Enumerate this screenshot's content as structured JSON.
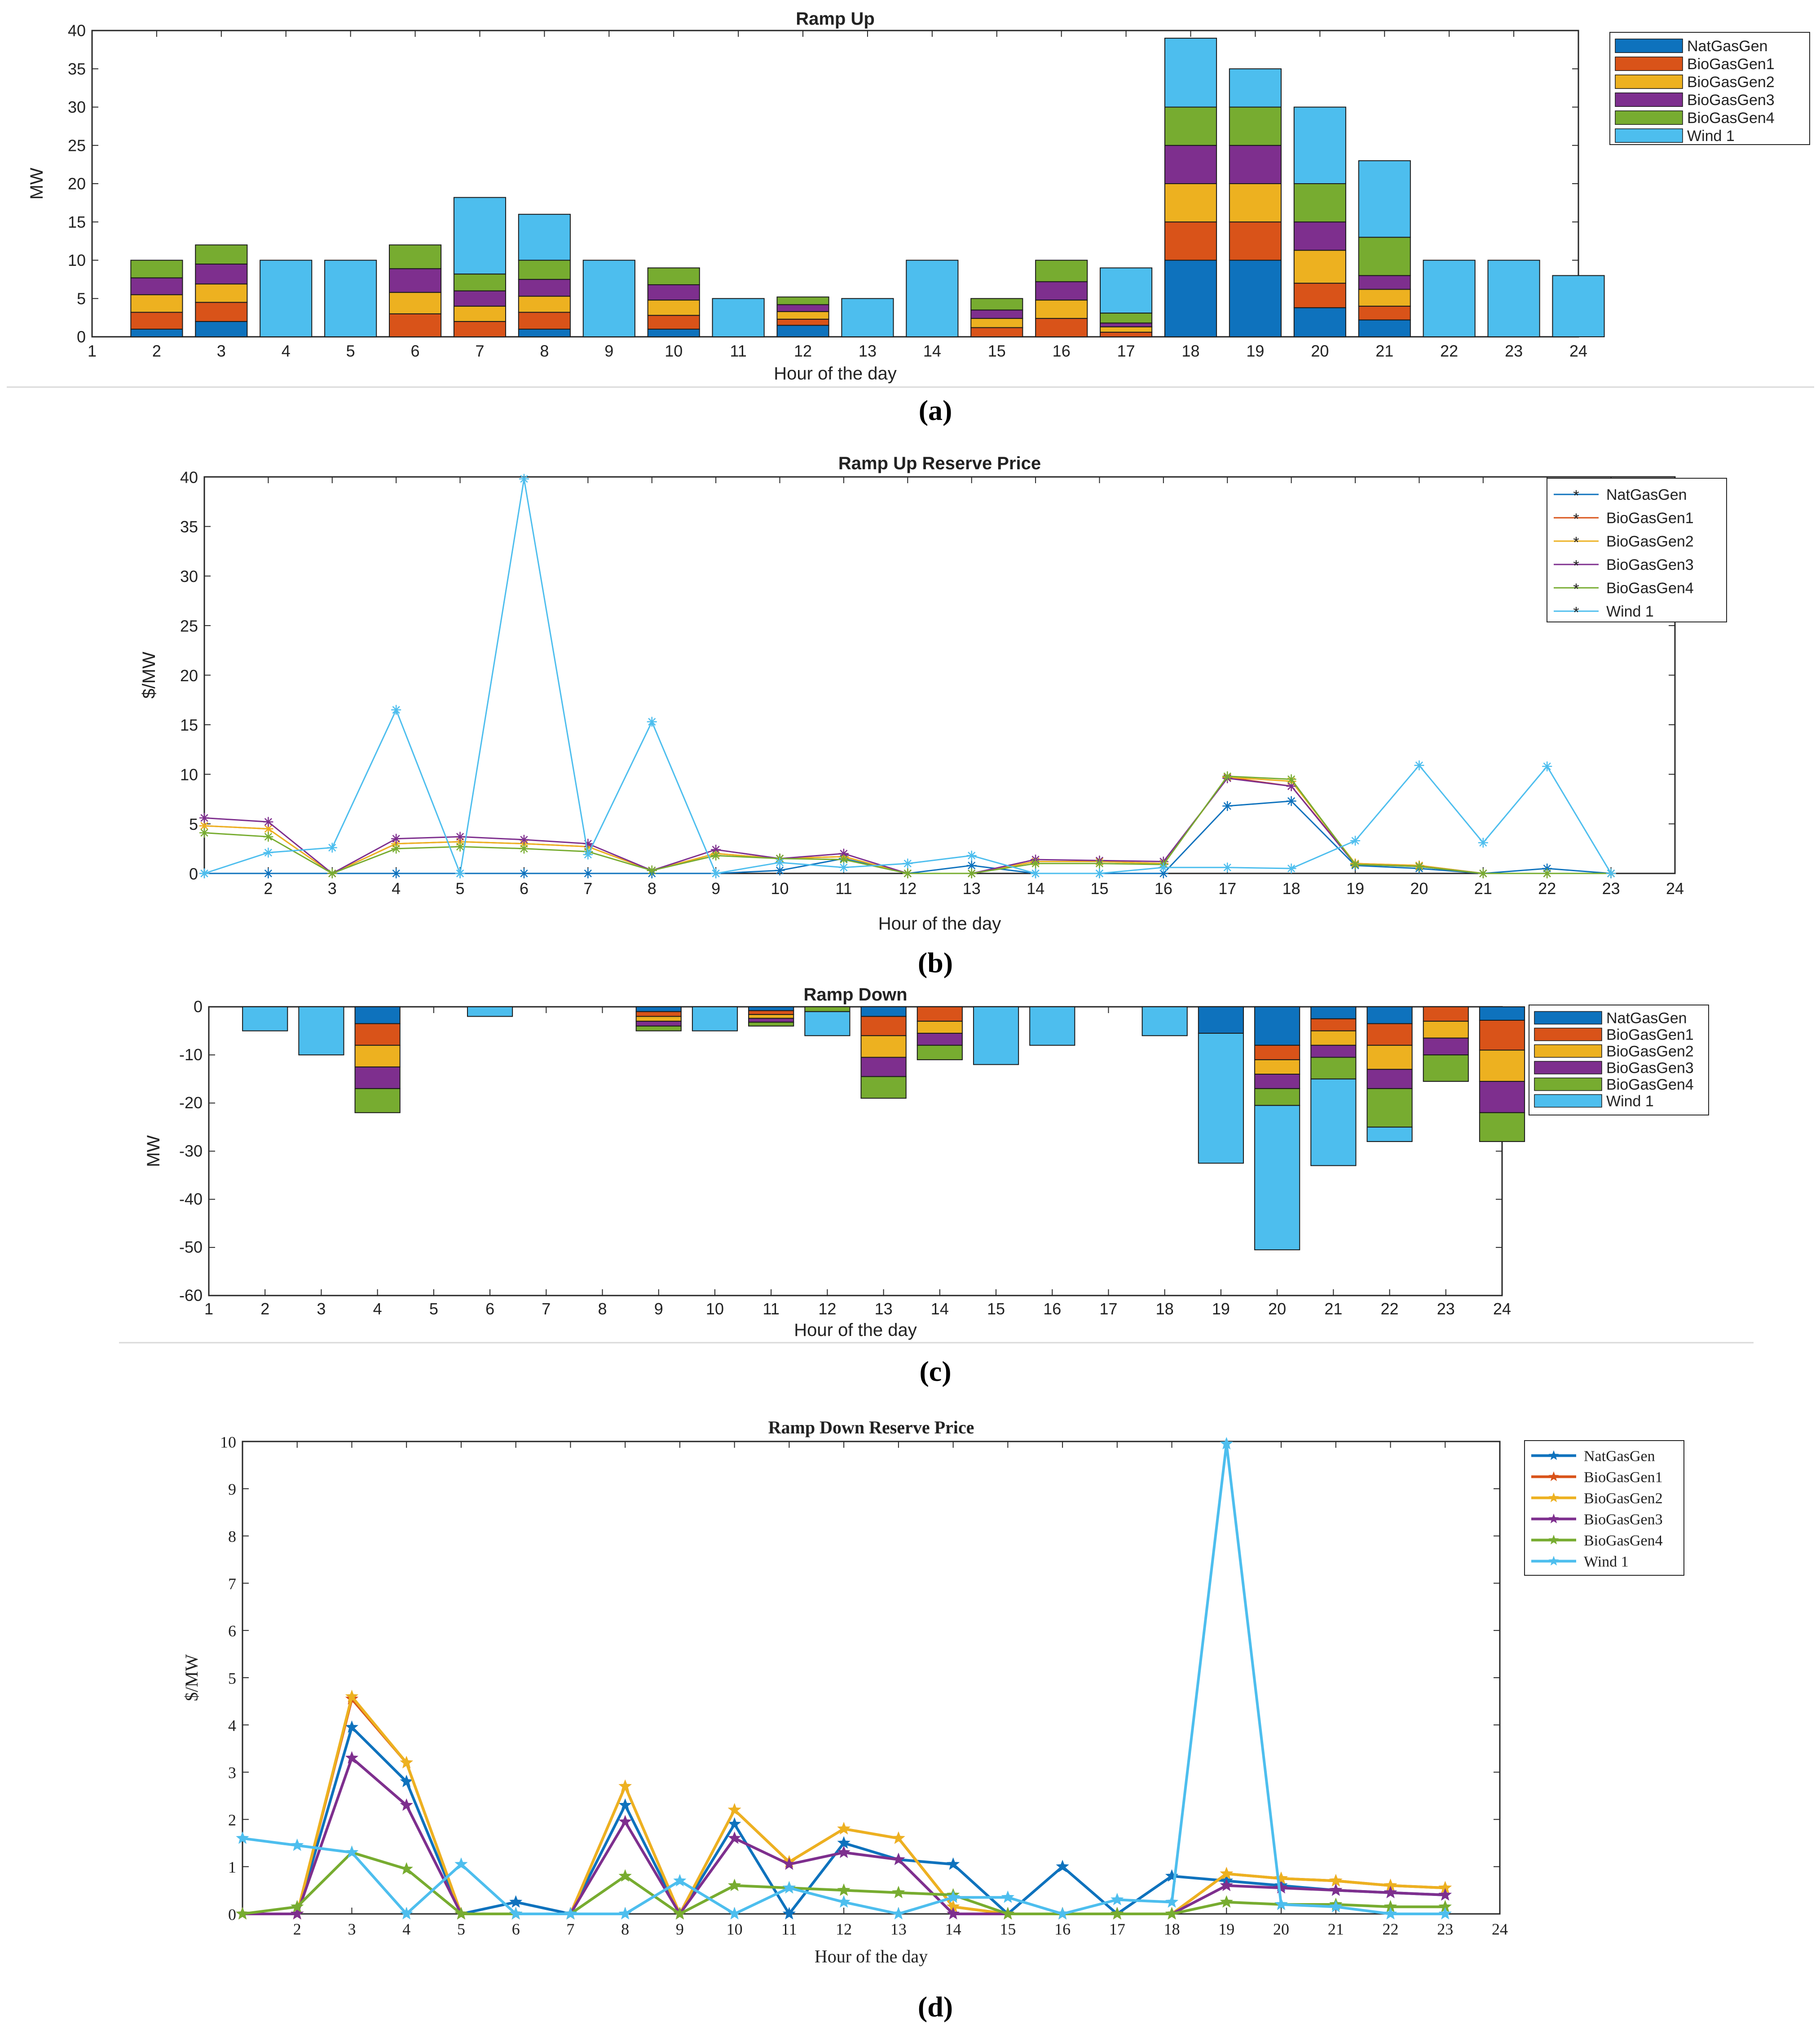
{
  "colors": {
    "NatGasGen": "#0e72bd",
    "BioGasGen1": "#d95319",
    "BioGasGen2": "#edb120",
    "BioGasGen3": "#7e2f8e",
    "BioGasGen4": "#77ac30",
    "Wind 1": "#4dbeee"
  },
  "chart_data": [
    {
      "id": "a",
      "type": "bar",
      "stacked": true,
      "title": "Ramp Up",
      "xlabel": "Hour of the day",
      "ylabel": "MW",
      "subplot_label": "(a)",
      "xlim": [
        1,
        24
      ],
      "ylim": [
        0,
        40
      ],
      "xticks": [
        1,
        2,
        3,
        4,
        5,
        6,
        7,
        8,
        9,
        10,
        11,
        12,
        13,
        14,
        15,
        16,
        17,
        18,
        19,
        20,
        21,
        22,
        23,
        24
      ],
      "yticks": [
        0,
        5,
        10,
        15,
        20,
        25,
        30,
        35,
        40
      ],
      "legend_position": "outside-right-top",
      "x": [
        2,
        3,
        4,
        5,
        6,
        7,
        8,
        9,
        10,
        11,
        12,
        13,
        14,
        15,
        16,
        17,
        18,
        19,
        20,
        21,
        22,
        23,
        24
      ],
      "series": [
        {
          "name": "NatGasGen",
          "values": [
            1,
            2,
            0,
            0,
            0,
            0,
            1,
            0,
            1,
            0,
            1.5,
            0,
            0,
            0,
            0,
            0,
            10,
            10,
            3.8,
            2.2,
            0,
            0,
            0
          ]
        },
        {
          "name": "BioGasGen1",
          "values": [
            2.2,
            2.5,
            0,
            0,
            3,
            2,
            2.2,
            0,
            1.8,
            0,
            0.8,
            0,
            0,
            1.2,
            2.4,
            0.6,
            5,
            5,
            3.2,
            1.8,
            0,
            0,
            0
          ]
        },
        {
          "name": "BioGasGen2",
          "values": [
            2.3,
            2.4,
            0,
            0,
            2.8,
            2,
            2.1,
            0,
            2,
            0,
            1,
            0,
            0,
            1.2,
            2.4,
            0.7,
            5,
            5,
            4.3,
            2.2,
            0,
            0,
            0
          ]
        },
        {
          "name": "BioGasGen3",
          "values": [
            2.2,
            2.6,
            0,
            0,
            3.1,
            2,
            2.2,
            0,
            2,
            0,
            0.9,
            0,
            0,
            1.1,
            2.4,
            0.5,
            5,
            5,
            3.7,
            1.8,
            0,
            0,
            0
          ]
        },
        {
          "name": "BioGasGen4",
          "values": [
            2.3,
            2.5,
            0,
            0,
            3.1,
            2.2,
            2.5,
            0,
            2.2,
            0,
            1,
            0,
            0,
            1.5,
            2.8,
            1.3,
            5,
            5,
            5,
            5,
            0,
            0,
            0
          ]
        },
        {
          "name": "Wind 1",
          "values": [
            0,
            0,
            10,
            10,
            0,
            10,
            6,
            10,
            0,
            5,
            0,
            5,
            10,
            0,
            0,
            5.9,
            9,
            5,
            10,
            10,
            10,
            10,
            8
          ]
        }
      ]
    },
    {
      "id": "b",
      "type": "line",
      "title": "Ramp Up Reserve Price",
      "xlabel": "Hour of the day",
      "ylabel": "$/MW",
      "subplot_label": "(b)",
      "xlim": [
        1,
        24
      ],
      "ylim": [
        0,
        40
      ],
      "xticks": [
        2,
        3,
        4,
        5,
        6,
        7,
        8,
        9,
        10,
        11,
        12,
        13,
        14,
        15,
        16,
        17,
        18,
        19,
        20,
        21,
        22,
        23,
        24
      ],
      "yticks": [
        0,
        5,
        10,
        15,
        20,
        25,
        30,
        35,
        40
      ],
      "legend_position": "outside-right-top",
      "marker": "asterisk",
      "x": [
        1,
        2,
        3,
        4,
        5,
        6,
        7,
        8,
        9,
        10,
        11,
        12,
        13,
        14,
        15,
        16,
        17,
        18,
        19,
        20,
        21,
        22,
        23
      ],
      "series": [
        {
          "name": "NatGasGen",
          "values": [
            0,
            0,
            0,
            0,
            0,
            0,
            0,
            0,
            0,
            0.3,
            1.5,
            0,
            0.8,
            0,
            0,
            0,
            6.8,
            7.3,
            0.8,
            0.5,
            0,
            0.5,
            0
          ]
        },
        {
          "name": "BioGasGen1",
          "values": [
            4.8,
            4.5,
            0,
            3,
            3.2,
            3,
            2.7,
            0.3,
            2,
            1.5,
            1.7,
            0,
            0,
            1.2,
            1.2,
            1,
            9.7,
            8.8,
            1,
            0.8,
            0,
            0,
            0
          ]
        },
        {
          "name": "BioGasGen2",
          "values": [
            4.8,
            4.5,
            0,
            3,
            3.2,
            3,
            2.7,
            0.3,
            2,
            1.5,
            1.7,
            0,
            0,
            1.2,
            1.2,
            1,
            9.7,
            9.3,
            1,
            0.8,
            0,
            0,
            0
          ]
        },
        {
          "name": "BioGasGen3",
          "values": [
            5.6,
            5.2,
            0,
            3.5,
            3.7,
            3.4,
            3,
            0.3,
            2.4,
            1.5,
            2,
            0,
            0,
            1.4,
            1.3,
            1.2,
            9.6,
            8.8,
            0.9,
            0.7,
            0,
            0,
            0
          ]
        },
        {
          "name": "BioGasGen4",
          "values": [
            4.1,
            3.7,
            0,
            2.5,
            2.7,
            2.5,
            2.2,
            0.3,
            1.8,
            1.5,
            1.4,
            0,
            0,
            1,
            1,
            0.9,
            9.8,
            9.5,
            0.9,
            0.7,
            0,
            0,
            0
          ]
        },
        {
          "name": "Wind 1",
          "values": [
            0,
            2.1,
            2.6,
            16.5,
            0,
            39.8,
            1.9,
            15.3,
            0,
            1.1,
            0.6,
            1,
            1.8,
            0,
            0,
            0.6,
            0.6,
            0.5,
            3.3,
            10.9,
            3.1,
            10.8,
            0
          ]
        }
      ]
    },
    {
      "id": "c",
      "type": "bar",
      "stacked": true,
      "title": "Ramp Down",
      "xlabel": "Hour of the day",
      "ylabel": "MW",
      "subplot_label": "(c)",
      "xlim": [
        1,
        24
      ],
      "ylim": [
        -60,
        0
      ],
      "xticks": [
        1,
        2,
        3,
        4,
        5,
        6,
        7,
        8,
        9,
        10,
        11,
        12,
        13,
        14,
        15,
        16,
        17,
        18,
        19,
        20,
        21,
        22,
        23,
        24
      ],
      "yticks": [
        -60,
        -50,
        -40,
        -30,
        -20,
        -10,
        0
      ],
      "legend_position": "outside-right-top",
      "x": [
        2,
        3,
        4,
        5,
        6,
        7,
        8,
        9,
        10,
        11,
        12,
        13,
        14,
        15,
        16,
        17,
        18,
        19,
        20,
        21,
        22,
        23,
        24
      ],
      "series": [
        {
          "name": "NatGasGen",
          "values": [
            0,
            0,
            -3.5,
            0,
            0,
            0,
            0,
            -1,
            0,
            -0.8,
            0,
            -2,
            0,
            0,
            0,
            0,
            0,
            -5.5,
            -8,
            -2.5,
            -3.5,
            0,
            -2.8
          ]
        },
        {
          "name": "BioGasGen1",
          "values": [
            0,
            0,
            -4.5,
            0,
            0,
            0,
            0,
            -1,
            0,
            -0.8,
            0,
            -4,
            -3,
            0,
            0,
            0,
            0,
            0,
            -3,
            -2.5,
            -4.5,
            -3,
            -6.2
          ]
        },
        {
          "name": "BioGasGen2",
          "values": [
            0,
            0,
            -4.5,
            0,
            0,
            0,
            0,
            -1,
            0,
            -0.8,
            0,
            -4.5,
            -2.5,
            0,
            0,
            0,
            0,
            0,
            -3,
            -3,
            -5,
            -3.5,
            -6.5
          ]
        },
        {
          "name": "BioGasGen3",
          "values": [
            0,
            0,
            -4.5,
            0,
            0,
            0,
            0,
            -1,
            0,
            -0.8,
            0,
            -4,
            -2.5,
            0,
            0,
            0,
            0,
            0,
            -3,
            -2.5,
            -4,
            -3.5,
            -6.5
          ]
        },
        {
          "name": "BioGasGen4",
          "values": [
            0,
            0,
            -5,
            0,
            0,
            0,
            0,
            -1,
            0,
            -0.8,
            -1,
            -4.5,
            -3,
            0,
            0,
            0,
            0,
            0,
            -3.5,
            -4.5,
            -8,
            -5.5,
            -6
          ]
        },
        {
          "name": "Wind 1",
          "values": [
            -5,
            -10,
            0,
            0,
            -2,
            0,
            0,
            0,
            -5,
            0,
            -5,
            0,
            0,
            -12,
            -8,
            0,
            -6,
            -27,
            -30,
            -18,
            -3,
            0,
            0
          ]
        }
      ]
    },
    {
      "id": "d",
      "type": "line",
      "title": "Ramp Down Reserve Price",
      "xlabel": "Hour of the day",
      "ylabel": "$/MW",
      "subplot_label": "(d)",
      "xlim": [
        1,
        24
      ],
      "ylim": [
        0,
        10
      ],
      "xticks": [
        2,
        3,
        4,
        5,
        6,
        7,
        8,
        9,
        10,
        11,
        12,
        13,
        14,
        15,
        16,
        17,
        18,
        19,
        20,
        21,
        22,
        23,
        24
      ],
      "yticks": [
        0,
        1,
        2,
        3,
        4,
        5,
        6,
        7,
        8,
        9,
        10
      ],
      "legend_position": "outside-right-top",
      "marker": "filled-star",
      "x": [
        1,
        2,
        3,
        4,
        5,
        6,
        7,
        8,
        9,
        10,
        11,
        12,
        13,
        14,
        15,
        16,
        17,
        18,
        19,
        20,
        21,
        22,
        23
      ],
      "series": [
        {
          "name": "NatGasGen",
          "values": [
            0,
            0,
            3.95,
            2.8,
            0,
            0.25,
            0,
            2.3,
            0,
            1.9,
            0,
            1.5,
            1.15,
            1.05,
            0,
            1,
            0,
            0.8,
            0.7,
            0.6,
            0.5,
            0.45,
            0.4
          ]
        },
        {
          "name": "BioGasGen1",
          "values": [
            0,
            0,
            4.55,
            3.2,
            0,
            0,
            0,
            2.7,
            0,
            2.2,
            1.1,
            1.8,
            1.6,
            0.15,
            0,
            0,
            0,
            0,
            0.85,
            0.75,
            0.7,
            0.6,
            0.55
          ]
        },
        {
          "name": "BioGasGen2",
          "values": [
            0,
            0,
            4.6,
            3.2,
            0,
            0,
            0,
            2.7,
            0,
            2.2,
            1.1,
            1.8,
            1.6,
            0.15,
            0,
            0,
            0,
            0,
            0.85,
            0.75,
            0.7,
            0.6,
            0.55
          ]
        },
        {
          "name": "BioGasGen3",
          "values": [
            0,
            0,
            3.3,
            2.3,
            0,
            0,
            0,
            1.95,
            0,
            1.6,
            1.05,
            1.3,
            1.15,
            0,
            0,
            0,
            0,
            0,
            0.6,
            0.55,
            0.5,
            0.45,
            0.4
          ]
        },
        {
          "name": "BioGasGen4",
          "values": [
            0,
            0.15,
            1.3,
            0.95,
            0,
            0,
            0,
            0.8,
            0,
            0.6,
            0.55,
            0.5,
            0.45,
            0.4,
            0,
            0,
            0,
            0,
            0.25,
            0.2,
            0.2,
            0.15,
            0.15
          ]
        },
        {
          "name": "Wind 1",
          "values": [
            1.6,
            1.45,
            1.3,
            0,
            1.05,
            0,
            0,
            0,
            0.7,
            0,
            0.55,
            0.25,
            0,
            0.35,
            0.35,
            0,
            0.3,
            0.25,
            9.95,
            0.2,
            0.15,
            0,
            0
          ]
        }
      ]
    }
  ]
}
